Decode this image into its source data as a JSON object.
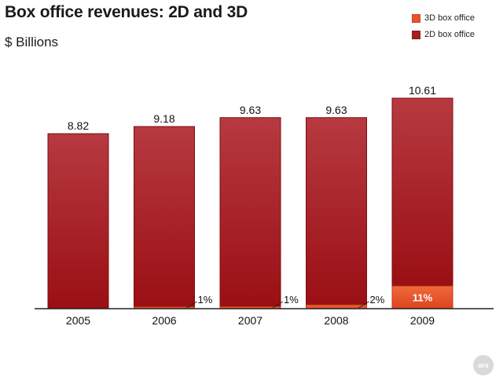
{
  "title": "Box office revenues: 2D and 3D",
  "subtitle": "$ Billions",
  "legend": {
    "items": [
      {
        "label": "3D box office",
        "color": "#e8522c"
      },
      {
        "label": "2D box office",
        "color": "#a41e22"
      }
    ]
  },
  "logo_text": "ars",
  "chart_data": {
    "type": "bar",
    "stacked": true,
    "title": "Box office revenues: 2D and 3D",
    "subtitle": "$ Billions",
    "categories": [
      "2005",
      "2006",
      "2007",
      "2008",
      "2009"
    ],
    "totals": [
      8.82,
      9.18,
      9.63,
      9.63,
      10.61
    ],
    "total_labels": [
      "8.82",
      "9.18",
      "9.63",
      "9.63",
      "10.61"
    ],
    "series": [
      {
        "name": "3D box office",
        "values": [
          0,
          0.09,
          0.1,
          0.19,
          1.14
        ],
        "color": "#e8522c"
      },
      {
        "name": "2D box office",
        "values": [
          8.82,
          9.09,
          9.53,
          9.44,
          9.47
        ],
        "color": "#a41e22"
      }
    ],
    "share_labels": [
      "",
      "1%",
      "1%",
      "2%",
      "11%"
    ],
    "ylim": [
      0,
      10.61
    ],
    "xlabel": "",
    "ylabel": "",
    "grid": false,
    "legend_position": "top-right"
  }
}
